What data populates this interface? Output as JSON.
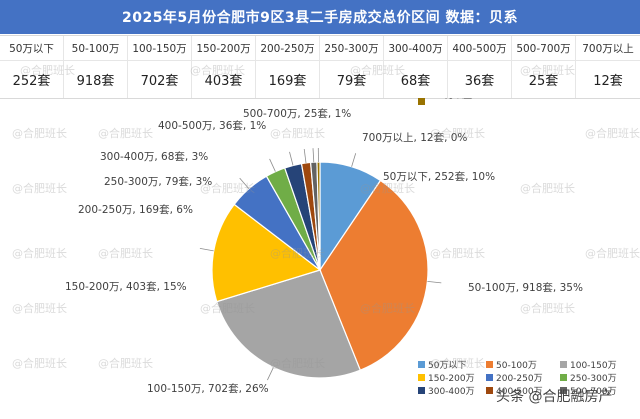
{
  "title": "2025年5月份合肥市9区3县二手房成交总价区间 数据：贝系",
  "summary_table": {
    "headers": [
      "50万以下",
      "50-100万",
      "100-150万",
      "150-200万",
      "200-250万",
      "250-300万",
      "300-400万",
      "400-500万",
      "500-700万",
      "700万以上"
    ],
    "values": [
      "252套",
      "918套",
      "702套",
      "403套",
      "169套",
      "79套",
      "68套",
      "36套",
      "25套",
      "12套"
    ]
  },
  "chart_data": {
    "type": "pie",
    "title": "",
    "categories": [
      "50万以下",
      "50-100万",
      "100-150万",
      "150-200万",
      "200-250万",
      "250-300万",
      "300-400万",
      "400-500万",
      "500-700万",
      "700万以上"
    ],
    "values": [
      252,
      918,
      702,
      403,
      169,
      79,
      68,
      36,
      25,
      12
    ],
    "unit": "套",
    "data_labels": [
      "50万以下, 252套, 10%",
      "50-100万, 918套, 35%",
      "100-150万, 702套, 26%",
      "150-200万, 403套, 15%",
      "200-250万, 169套, 6%",
      "250-300万, 79套, 3%",
      "300-400万, 68套, 3%",
      "400-500万, 36套, 1%",
      "500-700万, 25套, 1%",
      "700万以上, 12套, 0%"
    ],
    "colors": [
      "#5b9bd5",
      "#ed7d31",
      "#a5a5a5",
      "#ffc000",
      "#4472c4",
      "#70ad47",
      "#264478",
      "#9e480e",
      "#636363",
      "#997300"
    ],
    "legend_position": "bottom-right"
  },
  "watermark": "@合肥班长",
  "toutiao_credit": "头条 @合肥融房产"
}
